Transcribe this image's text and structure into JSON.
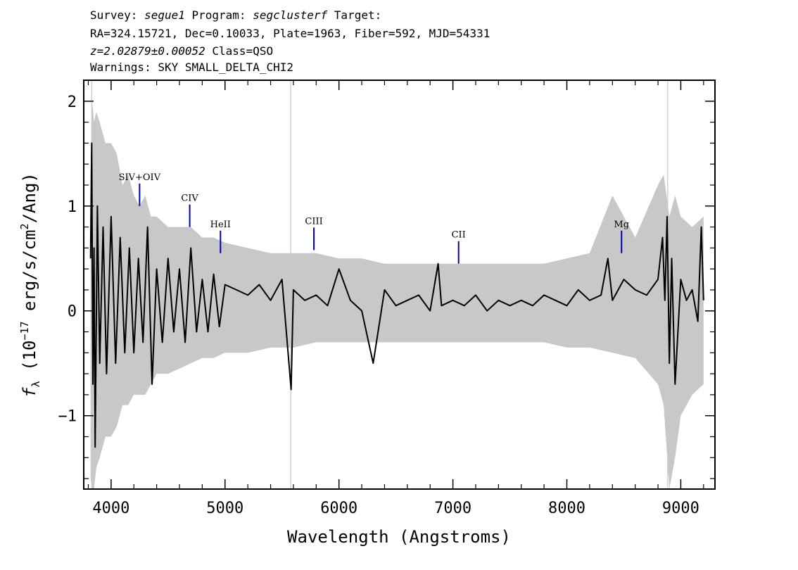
{
  "header": {
    "survey_label": "Survey: ",
    "survey": "segue1",
    "program_label": " Program: ",
    "program": "segclusterf",
    "target_label": " Target:",
    "line2": "RA=324.15721, Dec=0.10033, Plate=1963, Fiber=592, MJD=54331",
    "redshift": "z=2.02879±0.00052",
    "class_text": " Class=QSO",
    "warnings": "Warnings: SKY SMALL_DELTA_CHI2"
  },
  "chart_data": {
    "type": "line",
    "xlabel": "Wavelength (Angstroms)",
    "ylabel_f": "f",
    "ylabel_sub": "λ",
    "ylabel_pre": " (10",
    "ylabel_exp": "−17",
    "ylabel_mid": " erg/s/cm",
    "ylabel_exp2": "2",
    "ylabel_post": "/Ang)",
    "xlim": [
      3760,
      9300
    ],
    "ylim": [
      -1.7,
      2.2
    ],
    "x_ticks": [
      4000,
      5000,
      6000,
      7000,
      8000,
      9000
    ],
    "x_tick_labels": [
      "4000",
      "5000",
      "6000",
      "7000",
      "8000",
      "9000"
    ],
    "y_ticks": [
      -1,
      0,
      1,
      2
    ],
    "y_tick_labels": [
      "−1",
      "0",
      "1",
      "2"
    ],
    "sky_lines": [
      3830,
      5577,
      8885
    ],
    "series": [
      {
        "color": "#c8c8c8",
        "x": [
          3820,
          3835,
          3850,
          3870,
          3900,
          3950,
          4000,
          4050,
          4100,
          4150,
          4200,
          4250,
          4300,
          4350,
          4400,
          4500,
          4600,
          4700,
          4800,
          4900,
          5000,
          5200,
          5400,
          5600,
          5800,
          6000,
          6200,
          6400,
          6600,
          6800,
          7000,
          7200,
          7400,
          7600,
          7800,
          8000,
          8200,
          8400,
          8600,
          8800,
          8850,
          8900,
          8950,
          9000,
          9100,
          9200
        ],
        "upper": [
          1.3,
          2.0,
          1.8,
          1.9,
          1.8,
          1.6,
          1.6,
          1.5,
          1.2,
          1.3,
          1.1,
          1.0,
          1.1,
          0.9,
          0.9,
          0.8,
          0.8,
          0.8,
          0.7,
          0.7,
          0.65,
          0.6,
          0.55,
          0.55,
          0.55,
          0.5,
          0.5,
          0.45,
          0.45,
          0.45,
          0.45,
          0.45,
          0.45,
          0.45,
          0.45,
          0.5,
          0.55,
          1.1,
          0.7,
          1.2,
          1.3,
          0.9,
          1.1,
          0.9,
          0.8,
          0.9
        ],
        "lower": [
          -1.6,
          -1.7,
          -1.7,
          -1.5,
          -1.4,
          -1.2,
          -1.2,
          -1.1,
          -0.9,
          -0.9,
          -0.8,
          -0.8,
          -0.8,
          -0.7,
          -0.6,
          -0.6,
          -0.55,
          -0.5,
          -0.45,
          -0.45,
          -0.4,
          -0.4,
          -0.35,
          -0.35,
          -0.3,
          -0.3,
          -0.3,
          -0.3,
          -0.3,
          -0.3,
          -0.3,
          -0.3,
          -0.3,
          -0.3,
          -0.3,
          -0.35,
          -0.35,
          -0.4,
          -0.45,
          -0.7,
          -0.9,
          -1.7,
          -1.4,
          -1.0,
          -0.8,
          -0.7
        ]
      },
      {
        "color": "#000000",
        "x": [
          3820,
          3830,
          3840,
          3850,
          3860,
          3880,
          3900,
          3930,
          3960,
          4000,
          4040,
          4080,
          4120,
          4160,
          4200,
          4240,
          4280,
          4320,
          4360,
          4400,
          4450,
          4500,
          4550,
          4600,
          4650,
          4700,
          4750,
          4800,
          4850,
          4900,
          4950,
          5000,
          5100,
          5200,
          5300,
          5400,
          5500,
          5580,
          5600,
          5700,
          5800,
          5900,
          6000,
          6100,
          6200,
          6300,
          6400,
          6500,
          6600,
          6700,
          6800,
          6870,
          6900,
          7000,
          7100,
          7200,
          7300,
          7400,
          7500,
          7600,
          7700,
          7800,
          7900,
          8000,
          8100,
          8200,
          8300,
          8360,
          8400,
          8500,
          8600,
          8700,
          8800,
          8840,
          8860,
          8880,
          8900,
          8920,
          8950,
          9000,
          9050,
          9100,
          9150,
          9180,
          9200
        ],
        "y": [
          0.5,
          1.6,
          -0.7,
          0.6,
          -1.3,
          1.0,
          -0.5,
          0.8,
          -0.6,
          0.9,
          -0.5,
          0.7,
          -0.4,
          0.6,
          -0.4,
          0.5,
          -0.3,
          0.8,
          -0.7,
          0.4,
          -0.3,
          0.5,
          -0.2,
          0.4,
          -0.3,
          0.6,
          -0.2,
          0.3,
          -0.2,
          0.35,
          -0.15,
          0.25,
          0.2,
          0.15,
          0.25,
          0.1,
          0.3,
          -0.75,
          0.2,
          0.1,
          0.15,
          0.05,
          0.4,
          0.1,
          0.0,
          -0.5,
          0.2,
          0.05,
          0.1,
          0.15,
          0.0,
          0.45,
          0.05,
          0.1,
          0.05,
          0.15,
          0.0,
          0.1,
          0.05,
          0.1,
          0.05,
          0.15,
          0.1,
          0.05,
          0.2,
          0.1,
          0.15,
          0.5,
          0.1,
          0.3,
          0.2,
          0.15,
          0.3,
          0.7,
          0.1,
          0.9,
          -0.5,
          0.5,
          -0.7,
          0.3,
          0.1,
          0.2,
          -0.1,
          0.8,
          0.1
        ]
      }
    ],
    "emission_lines": [
      {
        "label": "SIV+OIV",
        "x": 4250,
        "y": 1.0
      },
      {
        "label": "CIV",
        "x": 4690,
        "y": 0.8
      },
      {
        "label": "HeII",
        "x": 4960,
        "y": 0.55
      },
      {
        "label": "CIII",
        "x": 5780,
        "y": 0.58
      },
      {
        "label": "CII",
        "x": 7050,
        "y": 0.45
      },
      {
        "label": "Mg",
        "x": 8480,
        "y": 0.55
      }
    ],
    "emission_line_color": "#0000b4"
  }
}
